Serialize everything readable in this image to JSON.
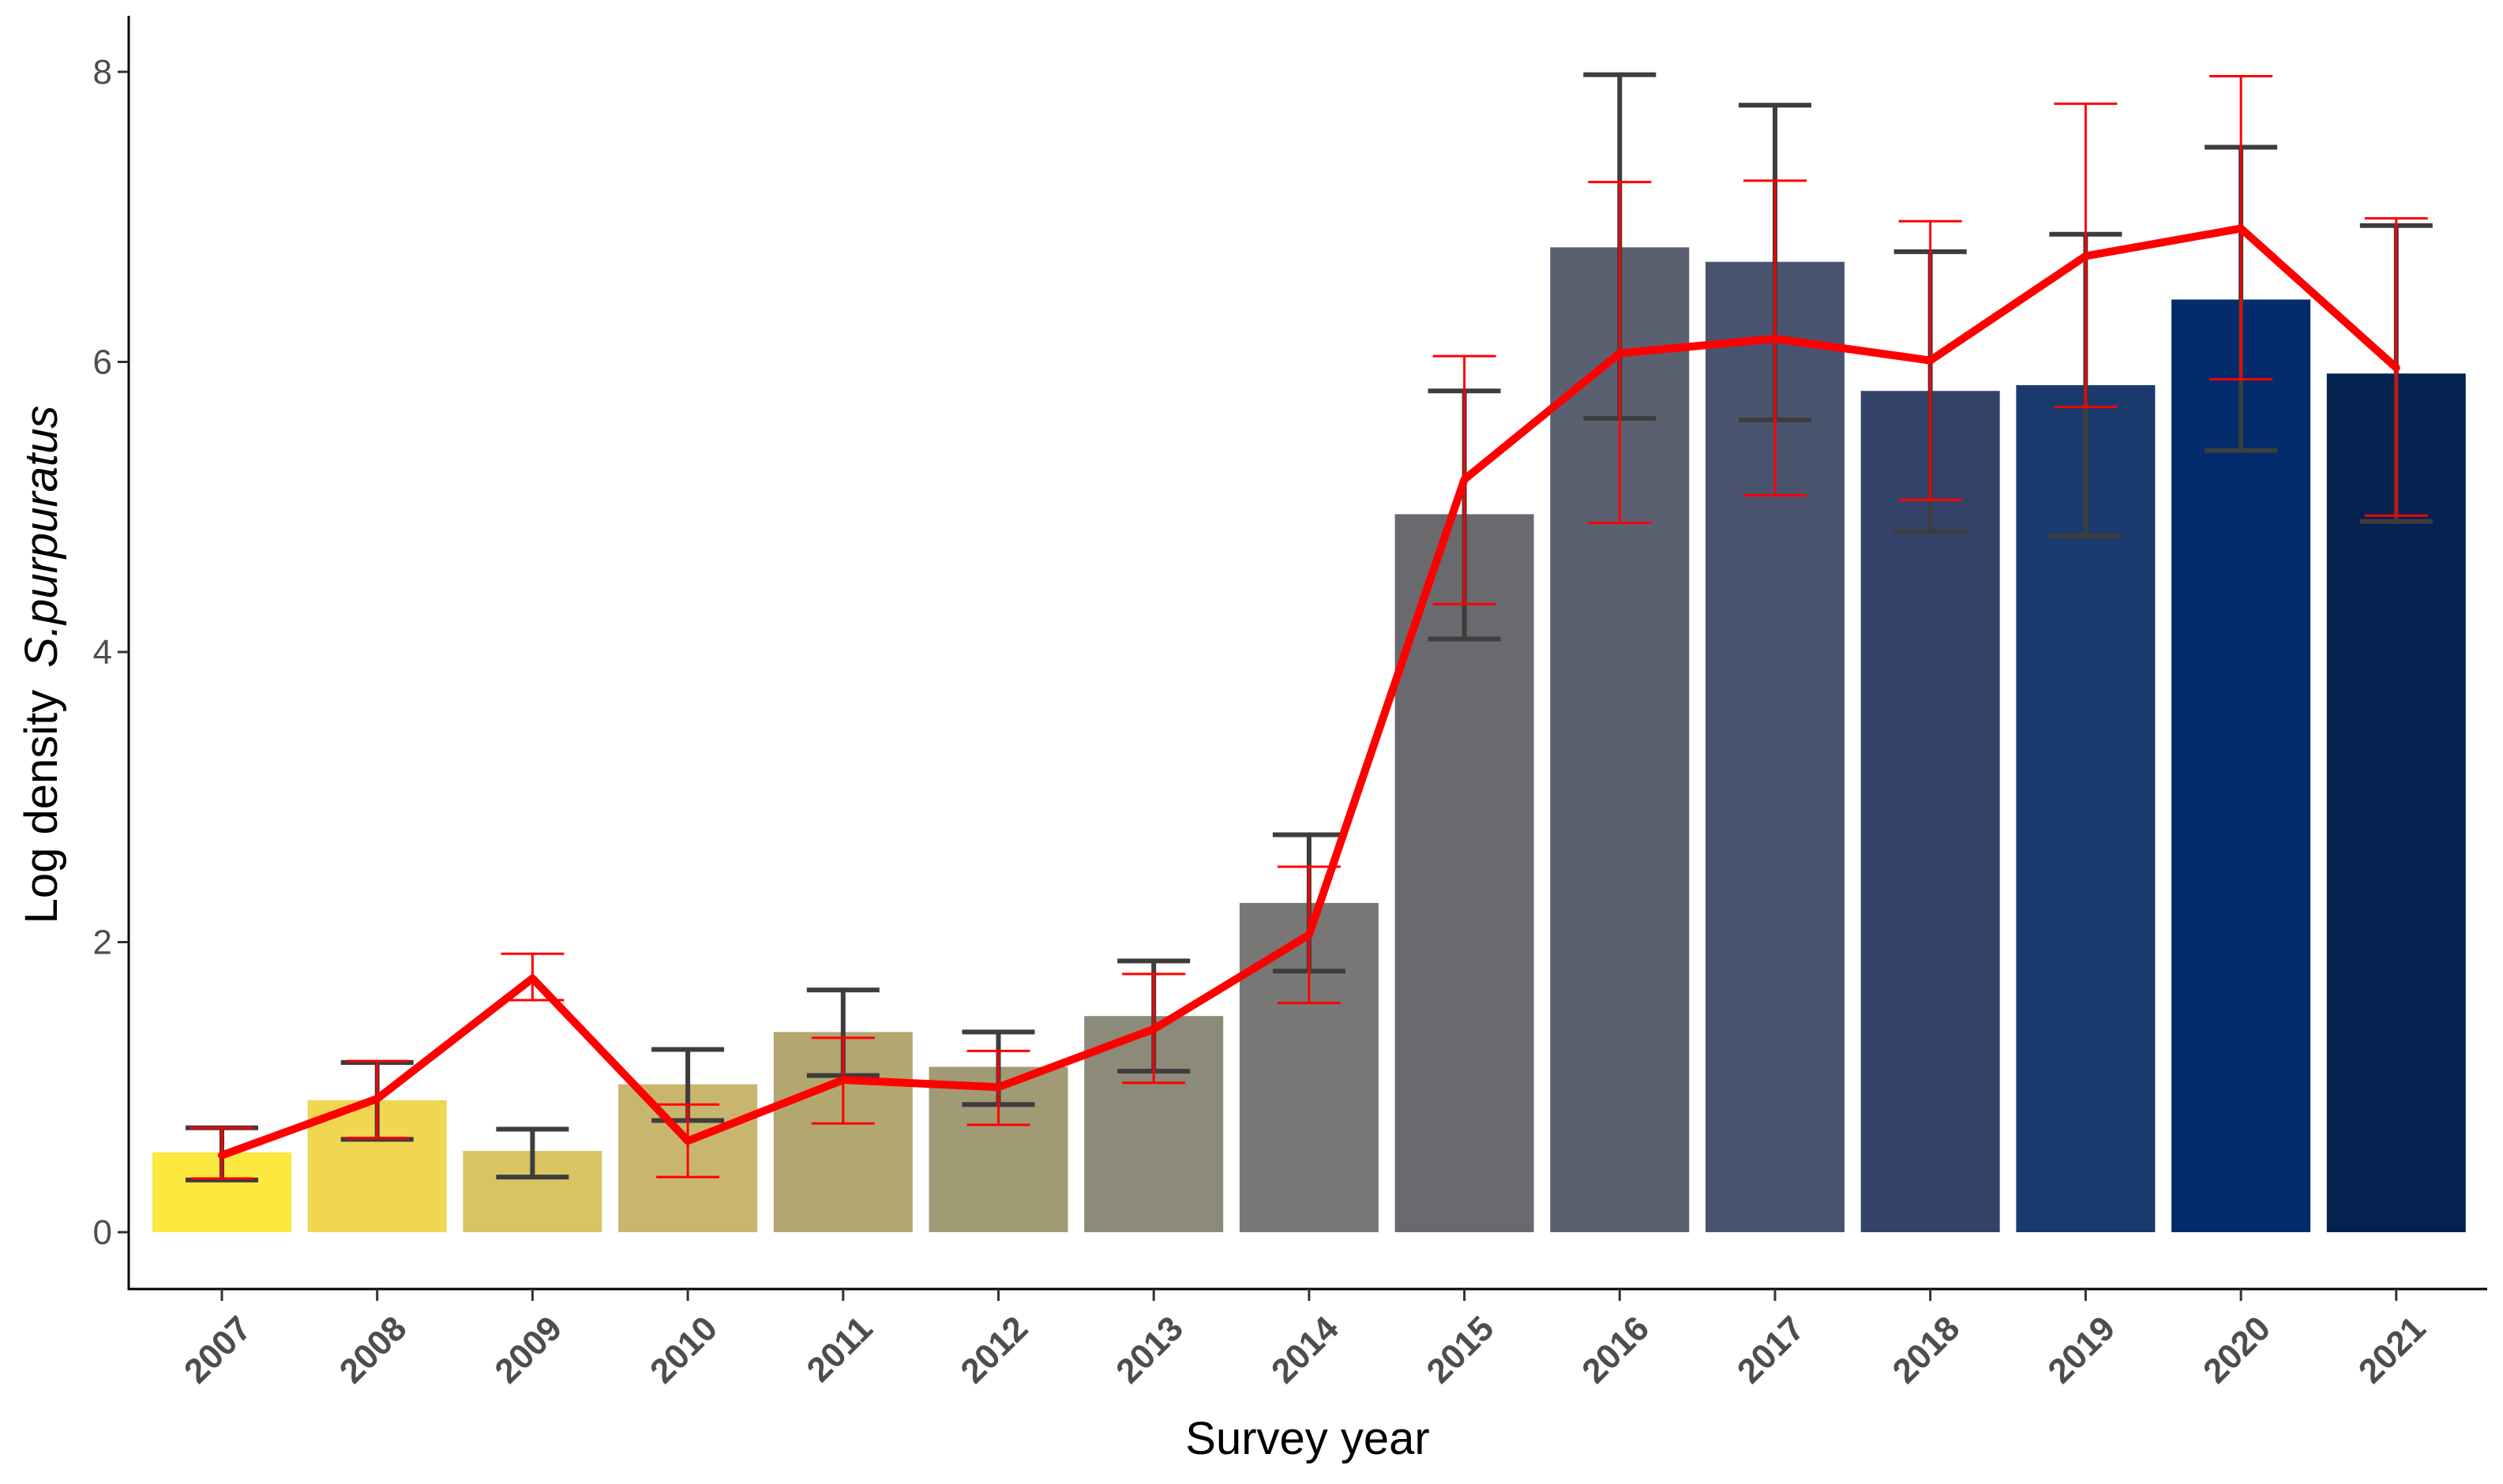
{
  "chart_data": {
    "type": "bar",
    "title": "",
    "xlabel": "Survey year",
    "ylabel_prefix": "Log density",
    "ylabel_species": "S.purpuratus",
    "ylim": [
      -0.4,
      8.4
    ],
    "yticks": [
      0,
      2,
      4,
      6,
      8
    ],
    "grid": false,
    "legend": "none",
    "categories": [
      "2007",
      "2008",
      "2009",
      "2010",
      "2011",
      "2012",
      "2013",
      "2014",
      "2015",
      "2016",
      "2017",
      "2018",
      "2019",
      "2020",
      "2021"
    ],
    "bar_colors": [
      "#FDE83F",
      "#F0D651",
      "#D9C463",
      "#C9B66E",
      "#B3A770",
      "#A09A75",
      "#8C8A78",
      "#787776",
      "#696A6E",
      "#5A6070",
      "#4A536E",
      "#334268",
      "#1A3A6E",
      "#042C6C",
      "#04224F"
    ],
    "series": [
      {
        "kind": "bar",
        "values": [
          0.55,
          0.91,
          0.56,
          1.02,
          1.38,
          1.14,
          1.49,
          2.27,
          4.95,
          6.79,
          6.69,
          5.8,
          5.84,
          6.43,
          5.92
        ],
        "err_low": [
          0.36,
          0.64,
          0.38,
          0.77,
          1.08,
          0.88,
          1.11,
          1.8,
          4.09,
          5.61,
          5.6,
          4.83,
          4.8,
          5.39,
          4.9
        ],
        "err_high": [
          0.72,
          1.17,
          0.71,
          1.26,
          1.67,
          1.38,
          1.87,
          2.74,
          5.8,
          7.98,
          7.77,
          6.76,
          6.88,
          7.48,
          6.94
        ],
        "err_color": "#3d3d3d"
      },
      {
        "kind": "line",
        "color": "#ff0000",
        "values": [
          0.53,
          0.92,
          1.75,
          0.63,
          1.05,
          1.0,
          1.4,
          2.05,
          5.19,
          6.06,
          6.16,
          6.01,
          6.73,
          6.92,
          5.96
        ],
        "err_low": [
          0.37,
          0.65,
          1.6,
          0.38,
          0.75,
          0.74,
          1.03,
          1.58,
          4.33,
          4.89,
          5.08,
          5.05,
          5.69,
          5.88,
          4.94
        ],
        "err_high": [
          0.72,
          1.18,
          1.92,
          0.88,
          1.34,
          1.25,
          1.78,
          2.52,
          6.04,
          7.24,
          7.25,
          6.97,
          7.78,
          7.97,
          6.99
        ]
      }
    ]
  }
}
